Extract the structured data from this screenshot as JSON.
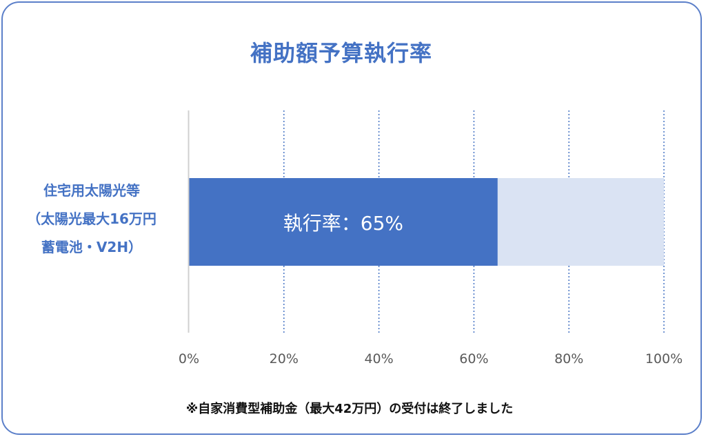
{
  "chart_data": {
    "type": "bar",
    "orientation": "horizontal",
    "stacked": true,
    "title": "補助額予算執行率",
    "categories": [
      "住宅用太陽光等（太陽光最大16万円蓄電池・V2H）"
    ],
    "category_label_lines": [
      "住宅用太陽光等",
      "（太陽光最大16万円",
      "蓄電池・V2H）"
    ],
    "series": [
      {
        "values": [
          65
        ],
        "color": "#4472c4"
      },
      {
        "values": [
          35
        ],
        "color": "#dae3f3"
      }
    ],
    "data_label": "執行率：65%",
    "xlim": [
      0,
      100
    ],
    "x_ticks": [
      0,
      20,
      40,
      60,
      80,
      100
    ],
    "x_tick_labels": [
      "0%",
      "20%",
      "40%",
      "60%",
      "80%",
      "100%"
    ],
    "grid": true,
    "grid_style": "dotted",
    "grid_color": "#4472c4",
    "tick_label_color": "#595959"
  },
  "footnote": "※自家消費型補助金（最大42万円）の受付は終了しました",
  "colors": {
    "accent": "#4472c4",
    "border": "#5b7fc9"
  }
}
